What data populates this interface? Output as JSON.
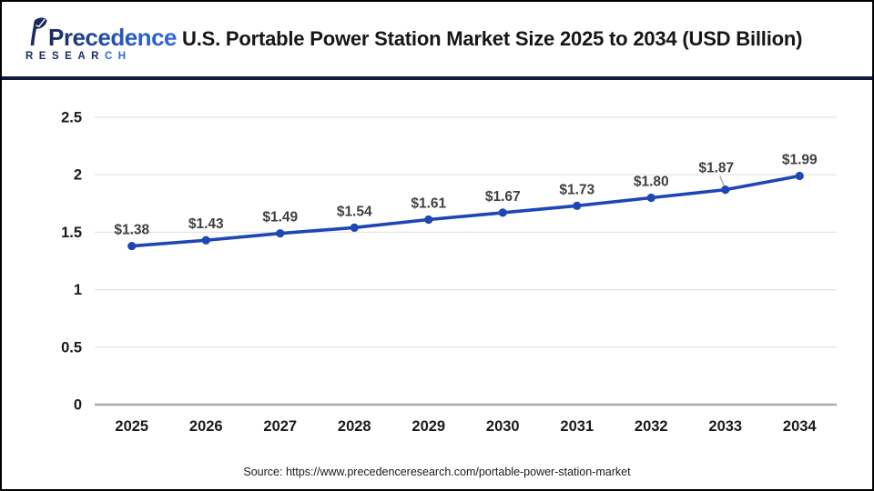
{
  "header": {
    "logo": {
      "brand_top": "Precedence",
      "research_dark": "RESEAR",
      "research_blue": "CH"
    },
    "title": "U.S. Portable Power Station Market Size 2025 to 2034 (USD Billion)"
  },
  "chart_data": {
    "type": "line",
    "title": "U.S. Portable Power Station Market Size 2025 to 2034 (USD Billion)",
    "categories": [
      "2025",
      "2026",
      "2027",
      "2028",
      "2029",
      "2030",
      "2031",
      "2032",
      "2033",
      "2034"
    ],
    "series": [
      {
        "name": "U.S. Portable Power Station Market Size (USD Billion)",
        "values": [
          1.38,
          1.43,
          1.49,
          1.54,
          1.61,
          1.67,
          1.73,
          1.8,
          1.87,
          1.99
        ],
        "point_labels": [
          "$1.38",
          "$1.43",
          "$1.49",
          "$1.54",
          "$1.61",
          "$1.67",
          "$1.73",
          "$1.80",
          "$1.87",
          "$1.99"
        ]
      }
    ],
    "xlabel": "",
    "ylabel": "",
    "ylim": [
      0,
      2.5
    ],
    "yticks": [
      0,
      0.5,
      1,
      1.5,
      2,
      2.5
    ],
    "ytick_labels": [
      "0",
      "0.5",
      "1",
      "1.5",
      "2",
      "2.5"
    ],
    "grid": true,
    "legend": "none"
  },
  "footer": {
    "source": "Source: https://www.precedenceresearch.com/portable-power-station-market"
  },
  "colors": {
    "line": "#1E46B4",
    "marker": "#1E46B4",
    "grid": "#E4E4E4",
    "zero_line": "#A9A9A9",
    "axis_text": "#1A1A1A",
    "data_label": "#3F3F3F",
    "leader_line": "#9B9B9B",
    "header_divider": "#101A3C",
    "logo_navy": "#1B2A5E",
    "logo_blue": "#2F6BDB"
  }
}
